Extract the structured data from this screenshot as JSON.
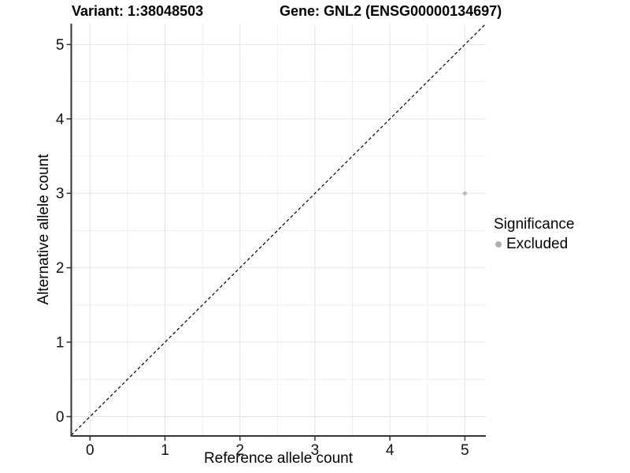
{
  "page": {
    "background": "#ffffff"
  },
  "chart_data": {
    "type": "scatter",
    "titles": {
      "variant": "Variant: 1:38048503",
      "gene": "Gene: GNL2 (ENSG00000134697)"
    },
    "xlabel": "Reference allele count",
    "ylabel": "Alternative allele count",
    "xlim": [
      -0.25,
      5.28
    ],
    "ylim": [
      -0.26,
      5.28
    ],
    "x_ticks": [
      0,
      1,
      2,
      3,
      4,
      5
    ],
    "y_ticks": [
      0,
      1,
      2,
      3,
      4,
      5
    ],
    "x_minor": [
      0.5,
      1.5,
      2.5,
      3.5,
      4.5
    ],
    "y_minor": [
      0.5,
      1.5,
      2.5,
      3.5,
      4.5
    ],
    "grid": true,
    "identity_line": {
      "style": "dashed",
      "color": "#000000",
      "dash": "4 3",
      "width": 1.2
    },
    "points": [
      {
        "x": 5,
        "y": 3,
        "significance": "Excluded",
        "color": "#bdbdbd",
        "radius": 2.6
      }
    ],
    "legend": {
      "position": "right",
      "title": "Significance",
      "items": [
        {
          "label": "Excluded",
          "color": "#b0b0b0"
        }
      ]
    },
    "colors": {
      "grid_major": "#e3e3e3",
      "grid_minor": "#efefef",
      "axis_line": "#333333",
      "tick_mark": "#333333",
      "tick_text": "#111111",
      "title_text": "#000000"
    }
  }
}
